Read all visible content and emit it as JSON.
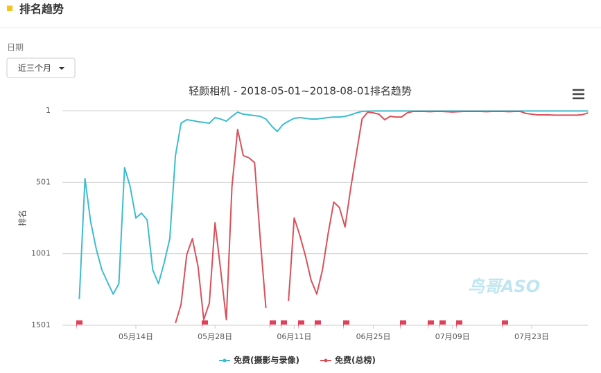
{
  "header": {
    "title": "排名趋势"
  },
  "filter": {
    "label": "日期",
    "value": "近三个月"
  },
  "chart_data": {
    "type": "line",
    "title": "轻颜相机 - 2018-05-01~2018-08-01排名趋势",
    "y_label": "排名",
    "annotation": "鸟哥ASO",
    "categories": [
      null,
      null,
      null,
      null,
      null,
      null,
      null,
      null,
      null,
      null,
      "05月14日",
      null,
      null,
      null,
      null,
      null,
      null,
      null,
      null,
      null,
      null,
      null,
      null,
      null,
      "05月28日",
      null,
      null,
      null,
      null,
      null,
      null,
      null,
      null,
      null,
      null,
      null,
      null,
      null,
      "06月11日",
      null,
      null,
      null,
      null,
      null,
      null,
      null,
      null,
      null,
      null,
      null,
      null,
      null,
      "06月25日",
      null,
      null,
      null,
      null,
      null,
      null,
      null,
      null,
      null,
      null,
      null,
      null,
      null,
      "07月09日",
      null,
      null,
      null,
      null,
      null,
      null,
      null,
      null,
      null,
      null,
      null,
      null,
      null,
      "07月23日",
      null,
      null,
      null,
      null,
      null,
      null,
      null,
      null,
      null,
      null
    ],
    "ylim": [
      1501,
      1
    ],
    "yticks": [
      1,
      501,
      1001,
      1501
    ],
    "grid": true,
    "series": [
      {
        "name": "免费(摄影与录像)",
        "color": "#3dbccf",
        "values": [
          1317,
          475,
          775,
          969,
          1114,
          1201,
          1283,
          1210,
          398,
          533,
          751,
          717,
          765,
          1114,
          1210,
          1065,
          896,
          315,
          88,
          64,
          69,
          78,
          83,
          88,
          49,
          59,
          74,
          40,
          11,
          25,
          30,
          35,
          40,
          59,
          107,
          146,
          98,
          74,
          54,
          49,
          54,
          59,
          59,
          54,
          49,
          45,
          45,
          40,
          30,
          16,
          6,
          4,
          3,
          3,
          3,
          3,
          3,
          3,
          3,
          3,
          3,
          3,
          3,
          3,
          3,
          3,
          3,
          3,
          3,
          3,
          3,
          3,
          3,
          3,
          3,
          3,
          3,
          3,
          3,
          3,
          3,
          3,
          3,
          3,
          3,
          3,
          3,
          3,
          3,
          3,
          3
        ]
      },
      {
        "name": "免费(总榜)",
        "color": "#d9505a",
        "values": [
          null,
          null,
          null,
          null,
          null,
          null,
          null,
          null,
          null,
          null,
          null,
          null,
          null,
          null,
          null,
          null,
          null,
          1486,
          1356,
          1007,
          896,
          1090,
          1462,
          1346,
          785,
          1114,
          1462,
          533,
          132,
          315,
          330,
          364,
          896,
          1380,
          null,
          null,
          null,
          1331,
          751,
          872,
          1017,
          1186,
          1283,
          1114,
          862,
          640,
          678,
          814,
          543,
          301,
          59,
          11,
          16,
          25,
          64,
          40,
          45,
          45,
          16,
          6,
          6,
          6,
          8,
          6,
          6,
          8,
          10,
          8,
          6,
          6,
          6,
          6,
          8,
          6,
          6,
          6,
          8,
          6,
          6,
          20,
          25,
          30,
          30,
          30,
          32,
          32,
          32,
          32,
          32,
          28,
          16
        ]
      }
    ]
  }
}
